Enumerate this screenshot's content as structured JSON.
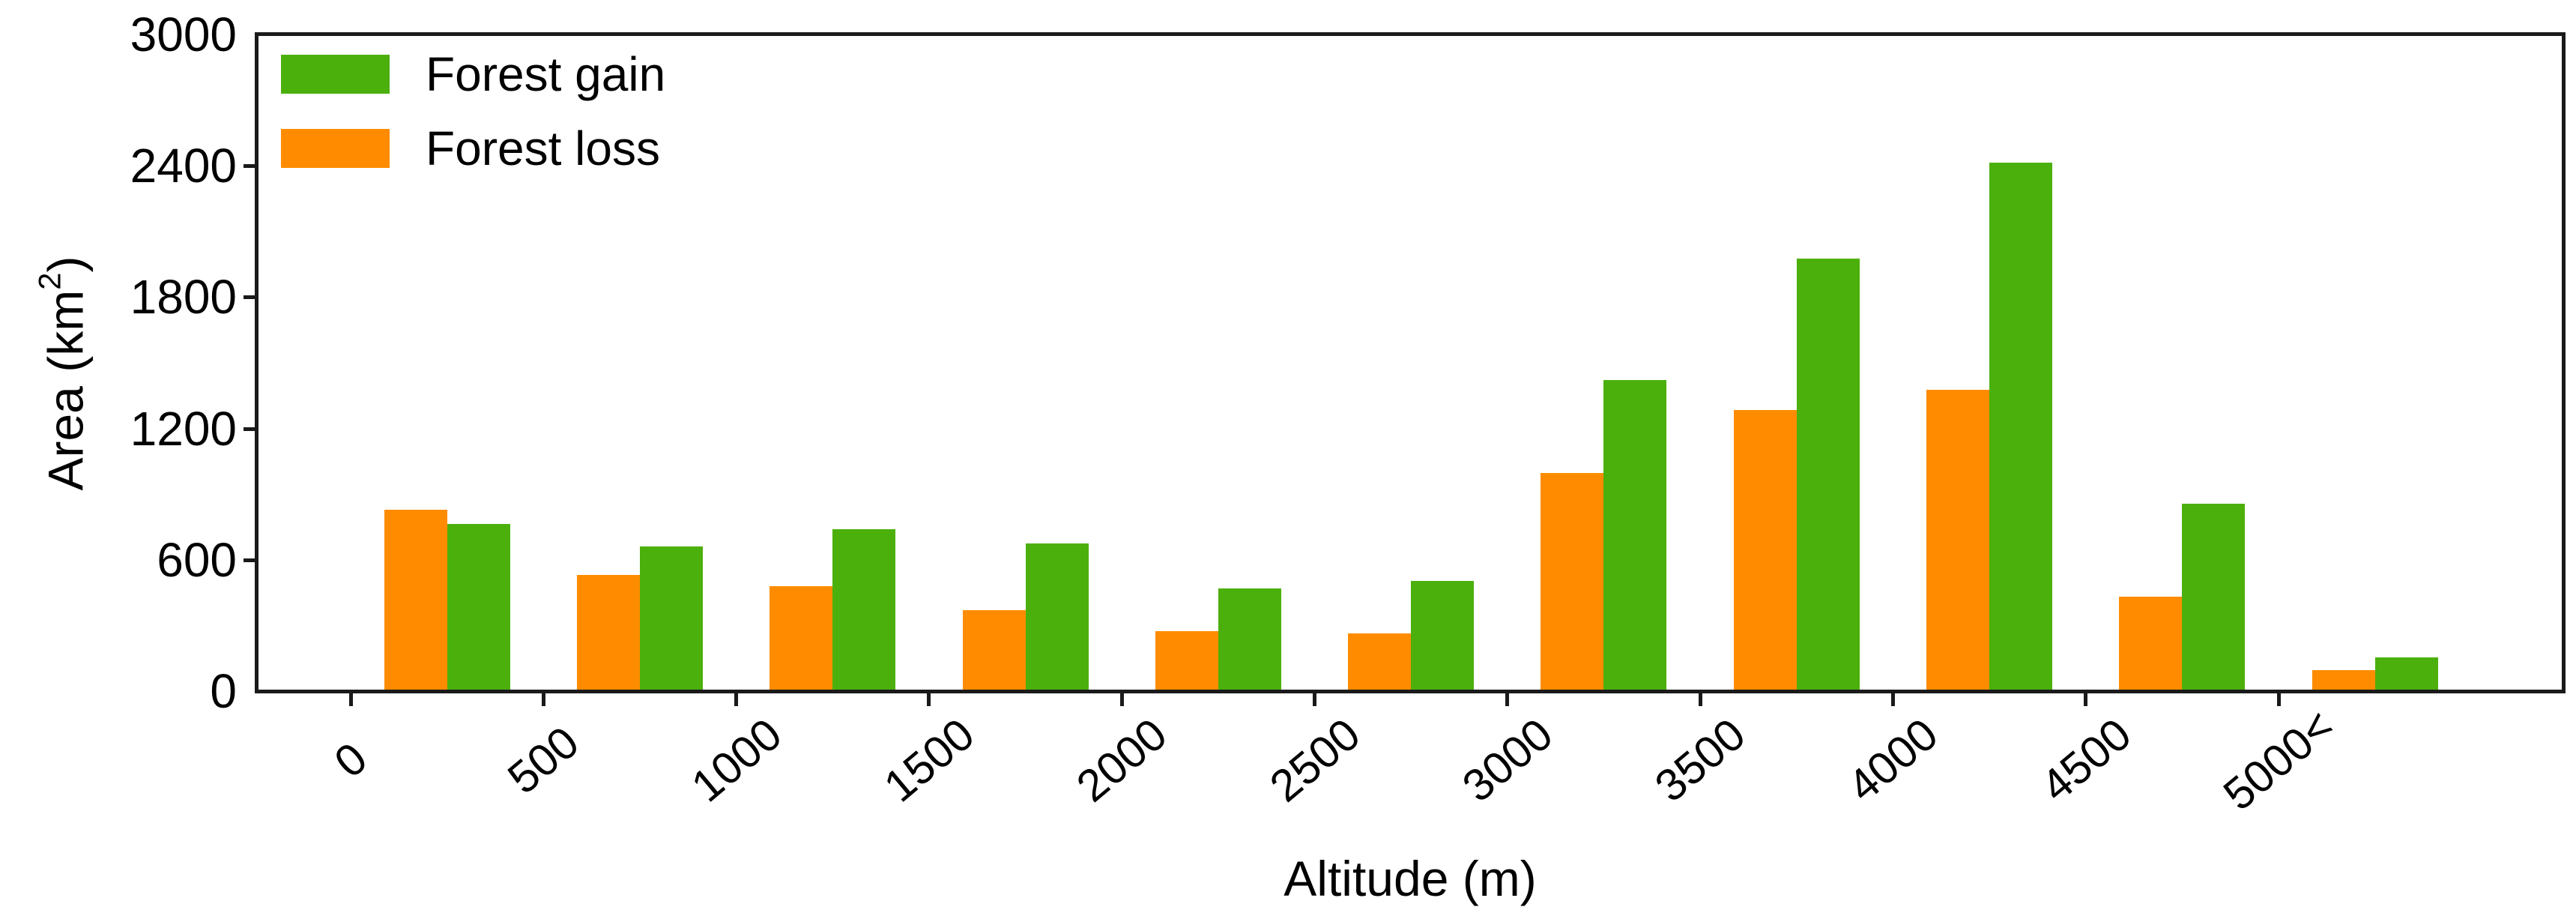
{
  "figure": {
    "background": "#ffffff",
    "axis_color": "#1a1a1a",
    "text_color": "#000000"
  },
  "chart_data": {
    "type": "bar",
    "title": "",
    "xlabel": "Altitude (m)",
    "ylabel": "Area (km²)",
    "ylabel_parts": {
      "prefix": "Area (km",
      "sup": "2",
      "suffix": ")"
    },
    "categories": [
      "0",
      "500",
      "1000",
      "1500",
      "2000",
      "2500",
      "3000",
      "3500",
      "4000",
      "4500",
      "5000<"
    ],
    "series": [
      {
        "name": "Forest loss",
        "color": "#FF8C00",
        "values": [
          830,
          530,
          480,
          370,
          275,
          265,
          995,
          1285,
          1375,
          430,
          95
        ]
      },
      {
        "name": "Forest gain",
        "color": "#4CB00C",
        "values": [
          765,
          660,
          740,
          675,
          470,
          505,
          1420,
          1975,
          2415,
          855,
          155
        ]
      }
    ],
    "legend_items": [
      {
        "label": "Forest gain",
        "color": "#4CB00C"
      },
      {
        "label": "Forest loss",
        "color": "#FF8C00"
      }
    ],
    "legend_position": "upper-left",
    "legend_frame": false,
    "grid": false,
    "ylim": [
      0,
      3000
    ],
    "yticks": [
      0,
      600,
      1200,
      1800,
      2400,
      3000
    ],
    "bar_layout_note": "loss bar drawn left of gain bar in each altitude class"
  }
}
